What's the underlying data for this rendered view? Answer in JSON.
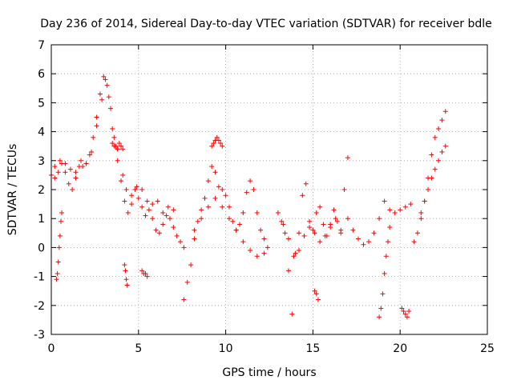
{
  "chart_data": {
    "type": "scatter",
    "title": "Day 236 of 2014, Sidereal Day-to-day VTEC variation (SDTVAR) for receiver bdle",
    "xlabel": "GPS time / hours",
    "ylabel": "SDTVAR / TECUs",
    "xlim": [
      0,
      25
    ],
    "ylim": [
      -3,
      7
    ],
    "xticks": [
      0,
      5,
      10,
      15,
      20,
      25
    ],
    "yticks": [
      -3,
      -2,
      -1,
      0,
      1,
      2,
      3,
      4,
      5,
      6,
      7
    ],
    "grid": true,
    "marker": "plus",
    "color": "#ff0000",
    "series": [
      {
        "name": "main-trace",
        "x": [
          0.0,
          0.2,
          0.4,
          0.6,
          0.8,
          1.0,
          1.2,
          1.4,
          1.6,
          1.8,
          2.0,
          2.2,
          2.4,
          2.6,
          2.8,
          3.0,
          3.2,
          3.4,
          3.6,
          3.8,
          4.0,
          4.2,
          4.4,
          4.6,
          4.8,
          5.0,
          5.2,
          5.4,
          5.6,
          5.8,
          6.0,
          6.2,
          6.4,
          6.6,
          6.8,
          7.0,
          7.2,
          7.4,
          7.6
        ],
        "y": [
          2.5,
          2.4,
          2.6,
          2.9,
          2.6,
          2.2,
          2.0,
          2.4,
          2.8,
          2.8,
          2.9,
          3.2,
          3.8,
          4.5,
          5.3,
          5.9,
          5.6,
          4.8,
          3.8,
          3.0,
          2.3,
          1.6,
          1.2,
          1.5,
          2.0,
          1.7,
          1.4,
          1.1,
          1.3,
          1.0,
          0.6,
          0.5,
          0.8,
          1.1,
          1.0,
          0.7,
          0.4,
          0.2,
          0.0
        ]
      },
      {
        "name": "upper-band",
        "x": [
          0.2,
          0.5,
          0.8,
          1.1,
          1.4,
          1.7,
          2.0,
          2.3,
          2.6,
          2.9,
          3.1,
          3.3,
          3.5,
          3.8,
          4.1,
          4.3,
          4.6,
          4.9,
          5.2,
          5.5,
          5.8,
          6.1,
          6.4,
          6.7,
          7.0
        ],
        "y": [
          2.8,
          3.0,
          2.9,
          2.7,
          2.6,
          3.0,
          2.9,
          3.3,
          4.2,
          5.1,
          5.8,
          5.2,
          4.1,
          3.4,
          2.5,
          2.0,
          1.8,
          2.1,
          2.0,
          1.6,
          1.5,
          1.6,
          1.2,
          1.4,
          1.3
        ]
      },
      {
        "name": "left-spike",
        "x": [
          0.3,
          0.35,
          0.4,
          0.45,
          0.5,
          0.55,
          0.6
        ],
        "y": [
          -1.1,
          -0.9,
          -0.5,
          0.0,
          0.4,
          0.9,
          1.2
        ]
      },
      {
        "name": "bump-3.5",
        "x": [
          3.5,
          3.6,
          3.7,
          3.8,
          3.9,
          4.0,
          4.1
        ],
        "y": [
          3.6,
          3.5,
          3.5,
          3.4,
          3.6,
          3.5,
          3.4
        ]
      },
      {
        "name": "dip-4.3",
        "x": [
          4.2,
          4.25,
          4.3,
          4.35
        ],
        "y": [
          -0.6,
          -0.8,
          -1.1,
          -1.3
        ]
      },
      {
        "name": "dip-5.3",
        "x": [
          5.2,
          5.3,
          5.4,
          5.5
        ],
        "y": [
          -0.8,
          -0.9,
          -0.9,
          -1.0
        ]
      },
      {
        "name": "rise-8",
        "x": [
          7.6,
          7.8,
          8.0,
          8.2,
          8.4,
          8.6,
          8.8,
          9.0,
          9.2,
          9.4,
          9.6,
          9.8,
          10.0,
          10.2,
          10.4,
          10.6,
          10.8,
          11.0,
          11.2,
          11.4,
          11.6,
          11.8,
          12.0,
          12.2,
          12.4
        ],
        "y": [
          -1.8,
          -1.2,
          -0.6,
          0.3,
          0.9,
          1.3,
          1.7,
          2.3,
          2.8,
          2.6,
          2.1,
          2.0,
          1.8,
          1.4,
          0.9,
          0.6,
          0.8,
          1.2,
          1.9,
          2.3,
          2.0,
          1.2,
          0.6,
          0.3,
          0.0
        ]
      },
      {
        "name": "lower-9-12",
        "x": [
          8.2,
          8.6,
          9.0,
          9.4,
          9.8,
          10.2,
          10.6,
          11.0,
          11.4,
          11.8,
          12.2
        ],
        "y": [
          0.6,
          1.0,
          1.4,
          1.7,
          1.4,
          1.0,
          0.6,
          0.2,
          -0.1,
          -0.3,
          -0.2
        ]
      },
      {
        "name": "bump-9.5",
        "x": [
          9.2,
          9.3,
          9.4,
          9.5,
          9.6,
          9.7,
          9.8
        ],
        "y": [
          3.5,
          3.6,
          3.7,
          3.8,
          3.7,
          3.6,
          3.5
        ]
      },
      {
        "name": "gap-13",
        "x": [
          13.0,
          13.2,
          13.4,
          13.6,
          13.8,
          14.0,
          14.2,
          14.4,
          14.6,
          14.8,
          15.0,
          15.2,
          15.4,
          15.6,
          15.8,
          16.0,
          16.2,
          16.4,
          16.6,
          16.8,
          17.0
        ],
        "y": [
          1.2,
          0.9,
          0.5,
          -0.8,
          -2.3,
          -0.2,
          0.5,
          1.8,
          2.2,
          0.9,
          0.6,
          1.2,
          1.4,
          0.8,
          0.4,
          0.7,
          1.3,
          0.9,
          0.5,
          2.0,
          3.1
        ]
      },
      {
        "name": "mid-13-17",
        "x": [
          13.3,
          13.6,
          13.9,
          14.2,
          14.5,
          14.8,
          15.1,
          15.4,
          15.7,
          16.0,
          16.3,
          16.6
        ],
        "y": [
          0.8,
          0.3,
          -0.3,
          -0.1,
          0.4,
          0.7,
          0.5,
          0.2,
          0.4,
          0.8,
          1.0,
          0.6
        ]
      },
      {
        "name": "drop-15.2",
        "x": [
          15.1,
          15.2,
          15.3
        ],
        "y": [
          -1.5,
          -1.6,
          -1.8
        ]
      },
      {
        "name": "late-17-20",
        "x": [
          17.0,
          17.3,
          17.6,
          17.9,
          18.2,
          18.5,
          18.8,
          19.1,
          19.4,
          19.7,
          20.0,
          20.3,
          20.6
        ],
        "y": [
          1.0,
          0.6,
          0.3,
          0.1,
          0.2,
          0.5,
          1.0,
          1.6,
          1.3,
          1.2,
          1.3,
          1.4,
          1.5
        ]
      },
      {
        "name": "dip-19",
        "x": [
          18.8,
          18.9,
          19.0,
          19.1,
          19.2,
          19.3,
          19.4
        ],
        "y": [
          -2.4,
          -2.1,
          -1.6,
          -0.9,
          -0.3,
          0.2,
          0.7
        ]
      },
      {
        "name": "dip-20.3",
        "x": [
          20.1,
          20.2,
          20.3,
          20.4,
          20.5
        ],
        "y": [
          -2.1,
          -2.2,
          -2.3,
          -2.4,
          -2.2
        ]
      },
      {
        "name": "end-rise",
        "x": [
          20.8,
          21.0,
          21.2,
          21.4,
          21.6,
          21.8,
          22.0,
          22.2,
          22.4,
          22.6
        ],
        "y": [
          0.2,
          0.5,
          1.0,
          1.6,
          2.4,
          3.2,
          3.8,
          4.1,
          4.4,
          4.7
        ]
      },
      {
        "name": "end-lower",
        "x": [
          21.2,
          21.4,
          21.6,
          21.8,
          22.0,
          22.2,
          22.4,
          22.6
        ],
        "y": [
          1.2,
          1.6,
          2.0,
          2.4,
          2.7,
          3.0,
          3.3,
          3.5
        ]
      }
    ]
  }
}
